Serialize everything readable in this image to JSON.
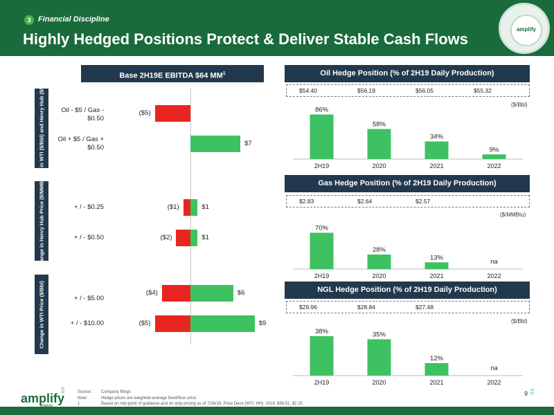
{
  "header": {
    "section_number": "3",
    "section_label": "Financial Discipline",
    "title": "Highly Hedged Positions Protect & Deliver Stable Cash Flows",
    "logo_text": "amplify",
    "logo_icon": "amplify-globe-logo"
  },
  "sensitivity": {
    "banner": "Base 2H19E EBITDA $64 MM",
    "banner_sup": "1",
    "groups": [
      {
        "label": "Change in WTI ($/Bbl) and Henry Hub ($/MMBtu)"
      },
      {
        "label": "Change in Henry Hub Price ($/MMBtu)"
      },
      {
        "label": "Change in WTI Price ($/Bbl)"
      }
    ],
    "rows": [
      {
        "label": "Oil - $5 / Gas - $0.50",
        "neg_value": -5,
        "neg_label": "($5)",
        "pos_value": 0,
        "pos_label": ""
      },
      {
        "label": "Oil + $5 / Gas + $0.50",
        "neg_value": 0,
        "neg_label": "",
        "pos_value": 7,
        "pos_label": "$7"
      },
      {
        "label": "+ / - $0.25",
        "neg_value": -1,
        "neg_label": "($1)",
        "pos_value": 1,
        "pos_label": "$1"
      },
      {
        "label": "+ / - $0.50",
        "neg_value": -2,
        "neg_label": "($2)",
        "pos_value": 1,
        "pos_label": "$1"
      },
      {
        "label": "+ / - $5.00",
        "neg_value": -4,
        "neg_label": "($4)",
        "pos_value": 6,
        "pos_label": "$6"
      },
      {
        "label": "+ / - $10.00",
        "neg_value": -5,
        "neg_label": "($5)",
        "pos_value": 9,
        "pos_label": "$9"
      }
    ]
  },
  "oil": {
    "banner": "Oil Hedge Position (% of 2H19 Daily Production)",
    "prices": [
      "$54.40",
      "$56.19",
      "$56.05",
      "$55.32"
    ],
    "unit": "($/Bbl)"
  },
  "gas": {
    "banner": "Gas Hedge Position (% of 2H19 Daily Production)",
    "prices": [
      "$2.83",
      "$2.64",
      "$2.57"
    ],
    "unit": "($/MMBtu)"
  },
  "ngl": {
    "banner": "NGL Hedge Position (% of 2H19 Daily Production)",
    "prices": [
      "$29.96",
      "$28.84",
      "$27.48"
    ],
    "unit": "($/Bbl)"
  },
  "chart_data": [
    {
      "type": "bar",
      "title": "Base 2H19E EBITDA $64 MM",
      "orientation": "horizontal",
      "categories": [
        "Oil - $5 / Gas - $0.50",
        "Oil + $5 / Gas + $0.50",
        "+ / - $0.25",
        "+ / - $0.50",
        "+ / - $5.00",
        "+ / - $10.00"
      ],
      "series": [
        {
          "values": [
            -5,
            0,
            -1,
            -2,
            -4,
            -5
          ],
          "color": "#e8261f"
        },
        {
          "values": [
            0,
            7,
            1,
            1,
            6,
            9
          ],
          "color": "#3ec261"
        }
      ]
    },
    {
      "type": "bar",
      "title": "Oil Hedge Position (% of 2H19 Daily Production)",
      "categories": [
        "2H19",
        "2020",
        "2021",
        "2022"
      ],
      "values": [
        86,
        58,
        34,
        9
      ],
      "labels": [
        "86%",
        "58%",
        "34%",
        "9%"
      ],
      "ylim": [
        0,
        100
      ],
      "color": "#3ec261"
    },
    {
      "type": "bar",
      "title": "Gas Hedge Position (% of 2H19 Daily Production)",
      "categories": [
        "2H19",
        "2020",
        "2021",
        "2022"
      ],
      "values": [
        70,
        28,
        13,
        0
      ],
      "labels": [
        "70%",
        "28%",
        "13%",
        "na"
      ],
      "ylim": [
        0,
        100
      ],
      "color": "#3ec261"
    },
    {
      "type": "bar",
      "title": "NGL Hedge Position (% of 2H19 Daily Production)",
      "categories": [
        "2H19",
        "2020",
        "2021",
        "2022"
      ],
      "values": [
        38,
        35,
        12,
        0
      ],
      "labels": [
        "38%",
        "35%",
        "12%",
        "na"
      ],
      "ylim": [
        0,
        50
      ],
      "color": "#3ec261"
    }
  ],
  "footer": {
    "logo_word": "amplify",
    "logo_sub": "energy",
    "notes": [
      {
        "key": "Source:",
        "text": "Company filings"
      },
      {
        "key": "Note:",
        "text": "Hedge prices are weighted-average fixed/floor price"
      },
      {
        "key": "1",
        "text": "Based on mid-point of guidance and on strip pricing as of 7/26/19. Price Deck (WTI, HH): 2019: $56.51, $2.25"
      }
    ],
    "page": "9"
  },
  "colors": {
    "brand_green": "#1a6b3b",
    "navy": "#22384d",
    "bar_green": "#3ec261",
    "bar_red": "#e8261f"
  }
}
